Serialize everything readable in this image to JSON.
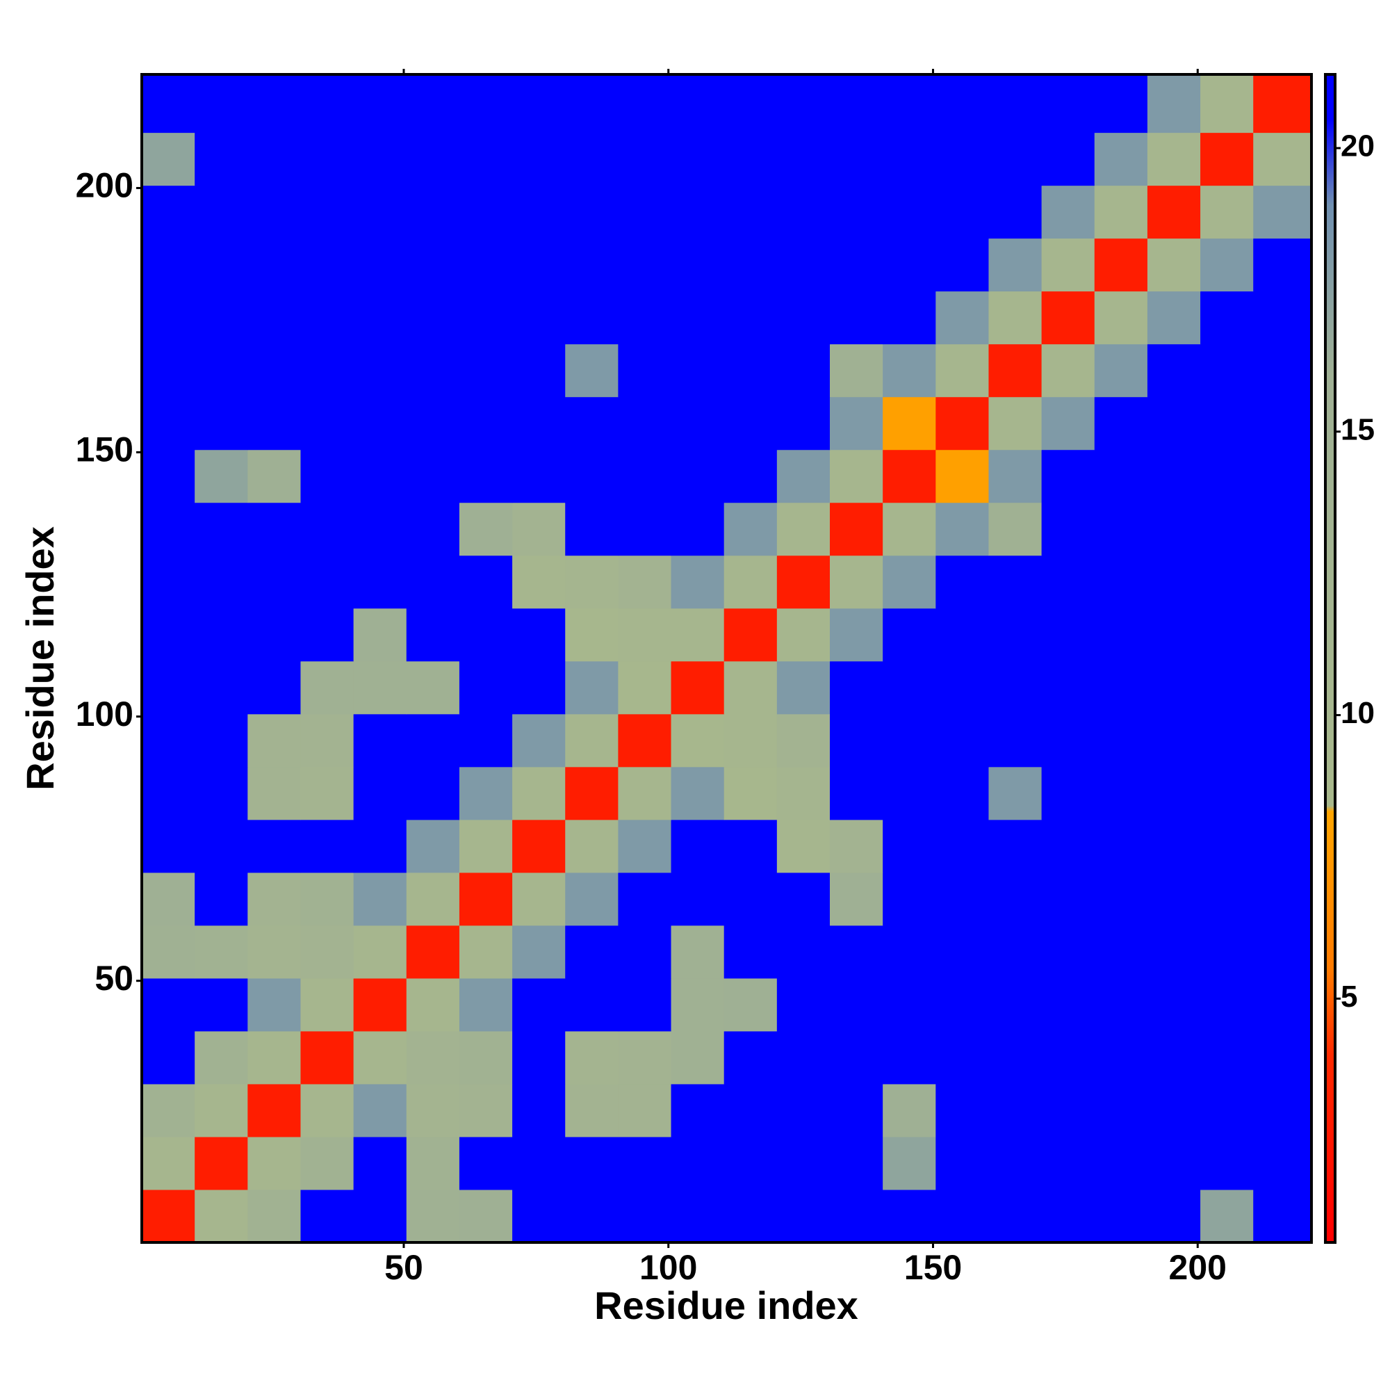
{
  "chart_data": {
    "type": "heatmap",
    "x_label": "Residue index",
    "y_label": "Residue index",
    "xlim": [
      0.5,
      221.5
    ],
    "ylim": [
      0.5,
      221.5
    ],
    "xticks": [
      50,
      100,
      150,
      200
    ],
    "yticks": [
      50,
      100,
      150,
      200
    ],
    "x_bins": [
      0.5,
      10.5,
      20.5,
      30.5,
      40.5,
      50.5,
      60.5,
      70.5,
      80.5,
      90.5,
      100.5,
      110.5,
      120.5,
      130.5,
      140.5,
      150.5,
      160.5,
      170.5,
      180.5,
      190.5,
      200.5,
      210.5,
      221.5
    ],
    "y_bins": [
      0.5,
      10.5,
      20.5,
      30.5,
      40.5,
      50.5,
      60.5,
      70.5,
      80.5,
      90.5,
      100.5,
      110.5,
      120.5,
      130.5,
      140.5,
      150.5,
      160.5,
      170.5,
      180.5,
      190.5,
      200.5,
      210.5,
      221.5
    ],
    "z": [
      [
        3,
        10,
        14,
        21,
        21,
        15,
        16,
        21,
        21,
        21,
        21,
        21,
        21,
        21,
        21,
        21,
        21,
        21,
        21,
        21,
        17,
        21
      ],
      [
        10,
        3,
        10,
        14,
        21,
        14,
        21,
        21,
        21,
        21,
        21,
        21,
        21,
        21,
        17,
        21,
        21,
        21,
        21,
        21,
        21,
        21
      ],
      [
        14,
        10,
        3,
        10,
        18,
        12,
        13,
        21,
        13,
        13,
        21,
        21,
        21,
        21,
        16,
        21,
        21,
        21,
        21,
        21,
        21,
        21
      ],
      [
        21,
        14,
        10,
        3,
        10,
        13,
        14,
        21,
        12,
        13,
        15,
        21,
        21,
        21,
        21,
        21,
        21,
        21,
        21,
        21,
        21,
        21
      ],
      [
        21,
        21,
        18,
        10,
        3,
        10,
        18,
        21,
        21,
        21,
        15,
        16,
        21,
        21,
        21,
        21,
        21,
        21,
        21,
        21,
        21,
        21
      ],
      [
        15,
        14,
        12,
        13,
        10,
        3,
        10,
        18,
        21,
        21,
        15,
        21,
        21,
        21,
        21,
        21,
        21,
        21,
        21,
        21,
        21,
        21
      ],
      [
        16,
        21,
        13,
        14,
        18,
        10,
        3,
        10,
        18,
        21,
        21,
        21,
        21,
        16,
        21,
        21,
        21,
        21,
        21,
        21,
        21,
        21
      ],
      [
        21,
        21,
        21,
        21,
        21,
        18,
        10,
        3,
        10,
        18,
        21,
        21,
        10,
        13,
        21,
        21,
        21,
        21,
        21,
        21,
        21,
        21
      ],
      [
        21,
        21,
        13,
        12,
        21,
        21,
        18,
        10,
        3,
        10,
        18,
        9,
        11,
        21,
        21,
        21,
        18,
        21,
        21,
        21,
        21,
        21
      ],
      [
        21,
        21,
        13,
        13,
        21,
        21,
        21,
        18,
        10,
        3,
        9,
        10,
        13,
        21,
        21,
        21,
        21,
        21,
        21,
        21,
        21,
        21
      ],
      [
        21,
        21,
        21,
        15,
        15,
        15,
        21,
        21,
        18,
        9,
        3,
        10,
        18,
        21,
        21,
        21,
        21,
        21,
        21,
        21,
        21,
        21
      ],
      [
        21,
        21,
        21,
        21,
        16,
        21,
        21,
        21,
        9,
        10,
        10,
        3,
        10,
        18,
        21,
        21,
        21,
        21,
        21,
        21,
        21,
        21
      ],
      [
        21,
        21,
        21,
        21,
        21,
        21,
        21,
        10,
        11,
        13,
        18,
        10,
        3,
        10,
        18,
        21,
        21,
        21,
        21,
        21,
        21,
        21
      ],
      [
        21,
        21,
        21,
        21,
        21,
        21,
        16,
        13,
        21,
        21,
        21,
        18,
        10,
        3,
        10,
        18,
        15,
        21,
        21,
        21,
        21,
        21
      ],
      [
        21,
        17,
        16,
        21,
        21,
        21,
        21,
        21,
        21,
        21,
        21,
        21,
        18,
        10,
        3,
        8,
        18,
        21,
        21,
        21,
        21,
        21
      ],
      [
        21,
        21,
        21,
        21,
        21,
        21,
        21,
        21,
        21,
        21,
        21,
        21,
        21,
        18,
        8,
        3,
        10,
        18,
        21,
        21,
        21,
        21
      ],
      [
        21,
        21,
        21,
        21,
        21,
        21,
        21,
        21,
        18,
        21,
        21,
        21,
        21,
        15,
        18,
        10,
        3,
        10,
        18,
        21,
        21,
        21
      ],
      [
        21,
        21,
        21,
        21,
        21,
        21,
        21,
        21,
        21,
        21,
        21,
        21,
        21,
        21,
        21,
        18,
        10,
        3,
        10,
        18,
        21,
        21
      ],
      [
        21,
        21,
        21,
        21,
        21,
        21,
        21,
        21,
        21,
        21,
        21,
        21,
        21,
        21,
        21,
        21,
        18,
        10,
        3,
        10,
        18,
        21
      ],
      [
        21,
        21,
        21,
        21,
        21,
        21,
        21,
        21,
        21,
        21,
        21,
        21,
        21,
        21,
        21,
        21,
        21,
        18,
        10,
        3,
        10,
        18
      ],
      [
        17,
        21,
        21,
        21,
        21,
        21,
        21,
        21,
        21,
        21,
        21,
        21,
        21,
        21,
        21,
        21,
        21,
        21,
        18,
        10,
        3,
        10
      ],
      [
        21,
        21,
        21,
        21,
        21,
        21,
        21,
        21,
        21,
        21,
        21,
        21,
        21,
        21,
        21,
        21,
        21,
        21,
        21,
        18,
        10,
        3
      ]
    ],
    "clim": [
      0.7,
      21.3
    ],
    "cticks": [
      5,
      10,
      15,
      20
    ],
    "colorscale": [
      {
        "value": 0.7,
        "color": "#ff0000"
      },
      {
        "value": 4,
        "color": "#ff2a00"
      },
      {
        "value": 5.5,
        "color": "#ff7a00"
      },
      {
        "value": 8.3,
        "color": "#ffa500"
      },
      {
        "value": 8.4,
        "color": "#a8b88c"
      },
      {
        "value": 16,
        "color": "#9fb094"
      },
      {
        "value": 19,
        "color": "#6f8fb0"
      },
      {
        "value": 20.5,
        "color": "#0000ff"
      },
      {
        "value": 21.3,
        "color": "#0000ff"
      }
    ]
  }
}
